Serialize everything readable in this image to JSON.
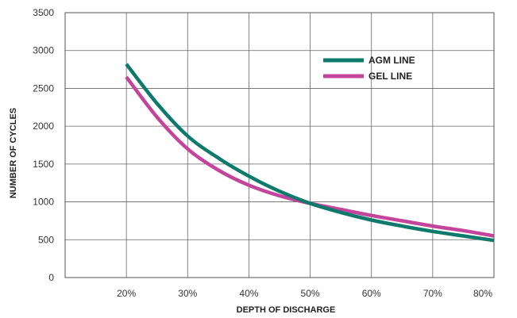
{
  "chart_data": {
    "type": "line",
    "xlabel": "DEPTH OF DISCHARGE",
    "ylabel": "NUMBER OF CYCLES",
    "x_tick_labels": [
      "20%",
      "30%",
      "40%",
      "50%",
      "60%",
      "70%",
      "80%"
    ],
    "y_tick_labels": [
      "0",
      "500",
      "1000",
      "1500",
      "2000",
      "2500",
      "3000",
      "3500"
    ],
    "xlim": [
      10,
      80
    ],
    "ylim": [
      0,
      3500
    ],
    "grid": true,
    "legend_position": "top-right",
    "series": [
      {
        "name": "AGM LINE",
        "color": "#0e7a6b",
        "x": [
          20,
          25,
          30,
          35,
          40,
          45,
          50,
          55,
          60,
          65,
          70,
          75,
          80
        ],
        "y": [
          2820,
          2300,
          1870,
          1580,
          1340,
          1140,
          980,
          860,
          760,
          680,
          610,
          550,
          490
        ]
      },
      {
        "name": "GEL LINE",
        "color": "#c4449b",
        "x": [
          20,
          25,
          30,
          35,
          40,
          45,
          50,
          55,
          60,
          65,
          70,
          75,
          80
        ],
        "y": [
          2650,
          2120,
          1700,
          1420,
          1220,
          1080,
          980,
          900,
          820,
          750,
          680,
          620,
          550
        ]
      }
    ]
  }
}
